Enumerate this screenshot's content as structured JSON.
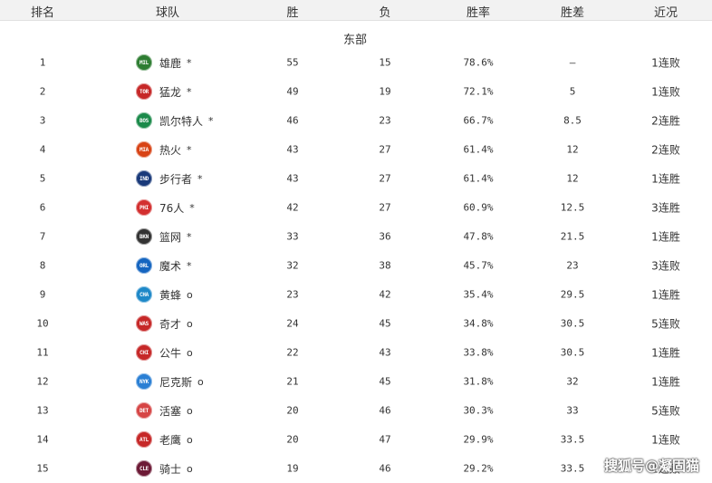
{
  "header": {
    "rank": "排名",
    "team": "球队",
    "wins": "胜",
    "losses": "负",
    "pct": "胜率",
    "gb": "胜差",
    "streak": "近况"
  },
  "conference": "东部",
  "rows": [
    {
      "rank": "1",
      "abbr": "MIL",
      "color": "#2e7d32",
      "name": "雄鹿",
      "mark": "*",
      "w": "55",
      "l": "15",
      "pct": "78.6%",
      "gb": "–",
      "streak": "1连败"
    },
    {
      "rank": "2",
      "abbr": "TOR",
      "color": "#c62828",
      "name": "猛龙",
      "mark": "*",
      "w": "49",
      "l": "19",
      "pct": "72.1%",
      "gb": "5",
      "streak": "1连败"
    },
    {
      "rank": "3",
      "abbr": "BOS",
      "color": "#1b8a4a",
      "name": "凯尔特人",
      "mark": "*",
      "w": "46",
      "l": "23",
      "pct": "66.7%",
      "gb": "8.5",
      "streak": "2连胜"
    },
    {
      "rank": "4",
      "abbr": "MIA",
      "color": "#d84315",
      "name": "热火",
      "mark": "*",
      "w": "43",
      "l": "27",
      "pct": "61.4%",
      "gb": "12",
      "streak": "2连败"
    },
    {
      "rank": "5",
      "abbr": "IND",
      "color": "#1a3a7a",
      "name": "步行者",
      "mark": "*",
      "w": "43",
      "l": "27",
      "pct": "61.4%",
      "gb": "12",
      "streak": "1连胜"
    },
    {
      "rank": "6",
      "abbr": "PHI",
      "color": "#d32f2f",
      "name": "76人",
      "mark": "*",
      "w": "42",
      "l": "27",
      "pct": "60.9%",
      "gb": "12.5",
      "streak": "3连胜"
    },
    {
      "rank": "7",
      "abbr": "BKN",
      "color": "#333333",
      "name": "篮网",
      "mark": "*",
      "w": "33",
      "l": "36",
      "pct": "47.8%",
      "gb": "21.5",
      "streak": "1连胜"
    },
    {
      "rank": "8",
      "abbr": "ORL",
      "color": "#1565c0",
      "name": "魔术",
      "mark": "*",
      "w": "32",
      "l": "38",
      "pct": "45.7%",
      "gb": "23",
      "streak": "3连败"
    },
    {
      "rank": "9",
      "abbr": "CHA",
      "color": "#1e88c8",
      "name": "黄蜂",
      "mark": "o",
      "w": "23",
      "l": "42",
      "pct": "35.4%",
      "gb": "29.5",
      "streak": "1连胜"
    },
    {
      "rank": "10",
      "abbr": "WAS",
      "color": "#c62828",
      "name": "奇才",
      "mark": "o",
      "w": "24",
      "l": "45",
      "pct": "34.8%",
      "gb": "30.5",
      "streak": "5连败"
    },
    {
      "rank": "11",
      "abbr": "CHI",
      "color": "#c62828",
      "name": "公牛",
      "mark": "o",
      "w": "22",
      "l": "43",
      "pct": "33.8%",
      "gb": "30.5",
      "streak": "1连胜"
    },
    {
      "rank": "12",
      "abbr": "NYK",
      "color": "#2a7fd4",
      "name": "尼克斯",
      "mark": "o",
      "w": "21",
      "l": "45",
      "pct": "31.8%",
      "gb": "32",
      "streak": "1连胜"
    },
    {
      "rank": "13",
      "abbr": "DET",
      "color": "#d64545",
      "name": "活塞",
      "mark": "o",
      "w": "20",
      "l": "46",
      "pct": "30.3%",
      "gb": "33",
      "streak": "5连败"
    },
    {
      "rank": "14",
      "abbr": "ATL",
      "color": "#c62828",
      "name": "老鹰",
      "mark": "o",
      "w": "20",
      "l": "47",
      "pct": "29.9%",
      "gb": "33.5",
      "streak": "1连败"
    },
    {
      "rank": "15",
      "abbr": "CLE",
      "color": "#6d1a36",
      "name": "骑士",
      "mark": "o",
      "w": "19",
      "l": "46",
      "pct": "29.2%",
      "gb": "33.5",
      "streak": "1连败"
    }
  ],
  "watermark": "搜狐号@凝固猫"
}
